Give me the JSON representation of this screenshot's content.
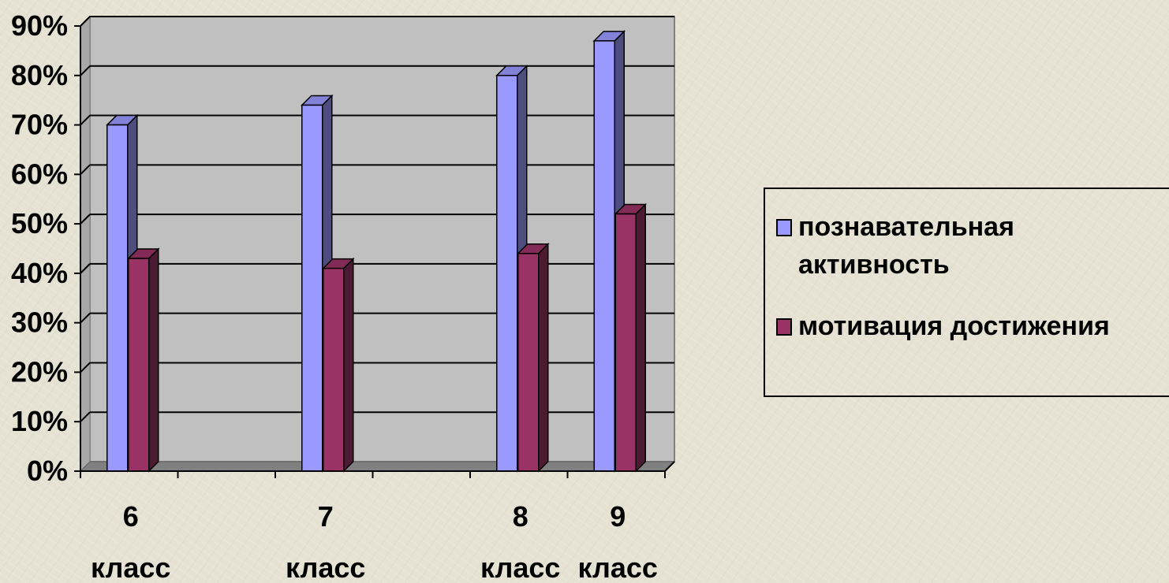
{
  "chart_data": {
    "type": "bar",
    "categories": [
      "6 класс",
      "7 класс",
      "8 класс",
      "9 класс"
    ],
    "category_labels": [
      {
        "number": "6",
        "word": "класс"
      },
      {
        "number": "7",
        "word": "класс"
      },
      {
        "number": "8",
        "word": "класс"
      },
      {
        "number": "9",
        "word": "класс"
      }
    ],
    "series": [
      {
        "name": "познавательная активность",
        "values": [
          70,
          74,
          80,
          87
        ],
        "color": "#9999ff"
      },
      {
        "name": "мотивация достижения",
        "values": [
          43,
          41,
          44,
          52
        ],
        "color": "#993366"
      }
    ],
    "title": "",
    "xlabel": "",
    "ylabel": "",
    "ylim": [
      0,
      90
    ],
    "yticks": [
      "0%",
      "10%",
      "20%",
      "30%",
      "40%",
      "50%",
      "60%",
      "70%",
      "80%",
      "90%"
    ],
    "grid": true,
    "plot_background": "#c0c0c0",
    "floor_color": "#808080",
    "legend_position": "right"
  }
}
